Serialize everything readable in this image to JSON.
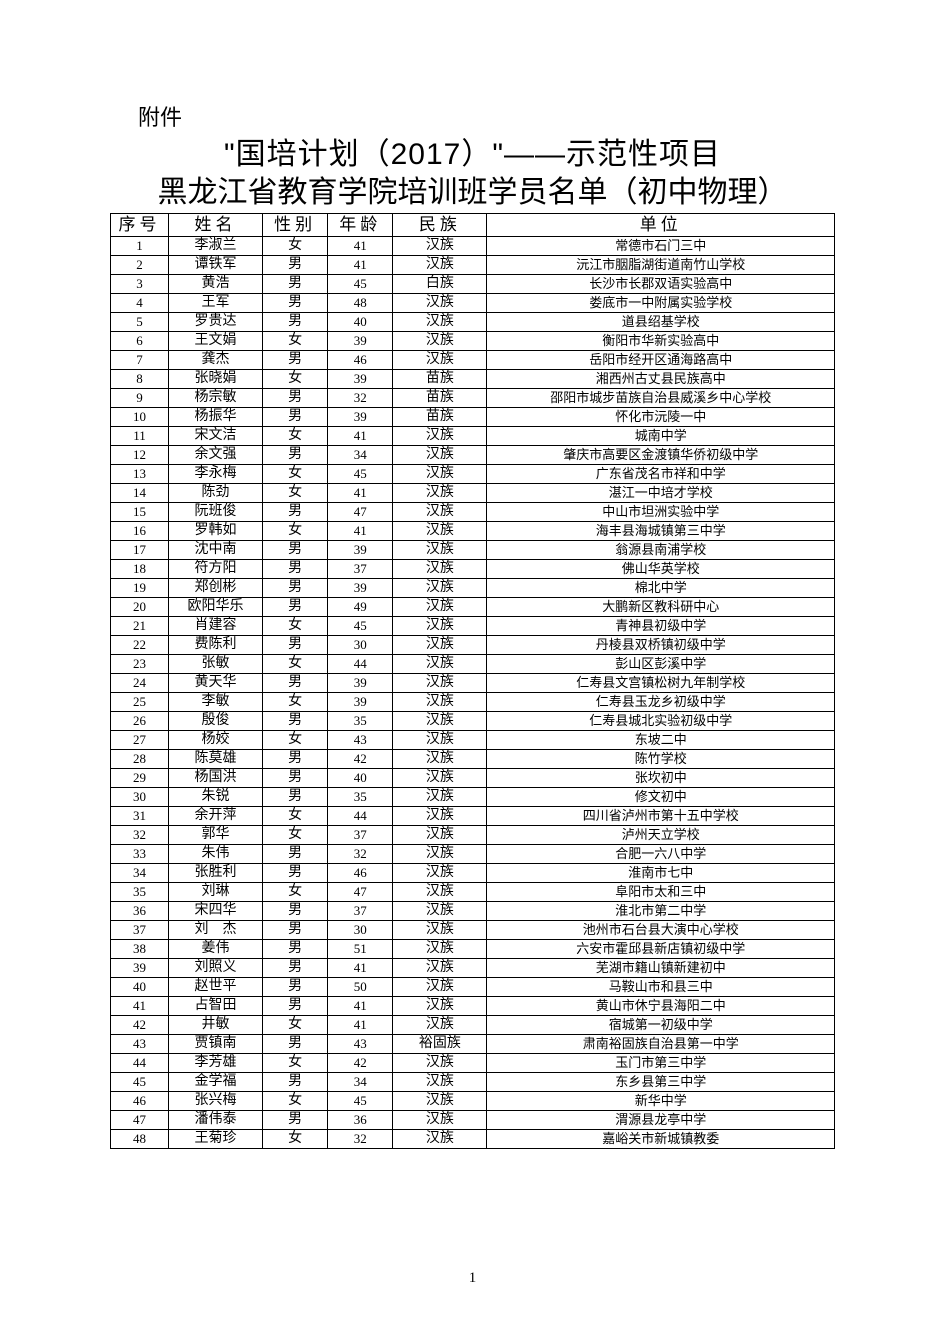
{
  "page": {
    "attachment_label": "附件",
    "title_line_1": "\"国培计划（2017）\"——示范性项目",
    "title_line_2": "黑龙江省教育学院培训班学员名单（初中物理）",
    "page_number": "1",
    "background_color": "#ffffff",
    "text_color": "#000000",
    "border_color": "#000000"
  },
  "table": {
    "columns": [
      "序号",
      "姓名",
      "性别",
      "年龄",
      "民族",
      "单位"
    ],
    "header_fontsize": 17,
    "body_fontsize": 14,
    "rows": [
      [
        "1",
        "李淑兰",
        "女",
        "41",
        "汉族",
        "常德市石门三中"
      ],
      [
        "2",
        "谭铁军",
        "男",
        "41",
        "汉族",
        "沅江市胭脂湖街道南竹山学校"
      ],
      [
        "3",
        "黄浩",
        "男",
        "45",
        "白族",
        "长沙市长郡双语实验高中"
      ],
      [
        "4",
        "王军",
        "男",
        "48",
        "汉族",
        "娄底市一中附属实验学校"
      ],
      [
        "5",
        "罗贵达",
        "男",
        "40",
        "汉族",
        "道县绍基学校"
      ],
      [
        "6",
        "王文娟",
        "女",
        "39",
        "汉族",
        "衡阳市华新实验高中"
      ],
      [
        "7",
        "龚杰",
        "男",
        "46",
        "汉族",
        "岳阳市经开区通海路高中"
      ],
      [
        "8",
        "张晓娟",
        "女",
        "39",
        "苗族",
        "湘西州古丈县民族高中"
      ],
      [
        "9",
        "杨宗敏",
        "男",
        "32",
        "苗族",
        "邵阳市城步苗族自治县威溪乡中心学校"
      ],
      [
        "10",
        "杨振华",
        "男",
        "39",
        "苗族",
        "怀化市沅陵一中"
      ],
      [
        "11",
        "宋文洁",
        "女",
        "41",
        "汉族",
        "城南中学"
      ],
      [
        "12",
        "余文强",
        "男",
        "34",
        "汉族",
        "肇庆市高要区金渡镇华侨初级中学"
      ],
      [
        "13",
        "李永梅",
        "女",
        "45",
        "汉族",
        "广东省茂名市祥和中学"
      ],
      [
        "14",
        "陈劲",
        "女",
        "41",
        "汉族",
        "湛江一中培才学校"
      ],
      [
        "15",
        "阮班俊",
        "男",
        "47",
        "汉族",
        "中山市坦洲实验中学"
      ],
      [
        "16",
        "罗韩如",
        "女",
        "41",
        "汉族",
        "海丰县海城镇第三中学"
      ],
      [
        "17",
        "沈中南",
        "男",
        "39",
        "汉族",
        "翁源县南浦学校"
      ],
      [
        "18",
        "符方阳",
        "男",
        "37",
        "汉族",
        "佛山华英学校"
      ],
      [
        "19",
        "郑创彬",
        "男",
        "39",
        "汉族",
        "棉北中学"
      ],
      [
        "20",
        "欧阳华乐",
        "男",
        "49",
        "汉族",
        "大鹏新区教科研中心"
      ],
      [
        "21",
        "肖建容",
        "女",
        "45",
        "汉族",
        "青神县初级中学"
      ],
      [
        "22",
        "费陈利",
        "男",
        "30",
        "汉族",
        "丹棱县双桥镇初级中学"
      ],
      [
        "23",
        "张敏",
        "女",
        "44",
        "汉族",
        "彭山区彭溪中学"
      ],
      [
        "24",
        "黄天华",
        "男",
        "39",
        "汉族",
        "仁寿县文宫镇松树九年制学校"
      ],
      [
        "25",
        "李敏",
        "女",
        "39",
        "汉族",
        "仁寿县玉龙乡初级中学"
      ],
      [
        "26",
        "殷俊",
        "男",
        "35",
        "汉族",
        "仁寿县城北实验初级中学"
      ],
      [
        "27",
        "杨姣",
        "女",
        "43",
        "汉族",
        "东坡二中"
      ],
      [
        "28",
        "陈莫雄",
        "男",
        "42",
        "汉族",
        "陈竹学校"
      ],
      [
        "29",
        "杨国洪",
        "男",
        "40",
        "汉族",
        "张坎初中"
      ],
      [
        "30",
        "朱锐",
        "男",
        "35",
        "汉族",
        "修文初中"
      ],
      [
        "31",
        "余开萍",
        "女",
        "44",
        "汉族",
        "四川省泸州市第十五中学校"
      ],
      [
        "32",
        "郭华",
        "女",
        "37",
        "汉族",
        "泸州天立学校"
      ],
      [
        "33",
        "朱伟",
        "男",
        "32",
        "汉族",
        "合肥一六八中学"
      ],
      [
        "34",
        "张胜利",
        "男",
        "46",
        "汉族",
        "淮南市七中"
      ],
      [
        "35",
        "刘琳",
        "女",
        "47",
        "汉族",
        "阜阳市太和三中"
      ],
      [
        "36",
        "宋四华",
        "男",
        "37",
        "汉族",
        "淮北市第二中学"
      ],
      [
        "37",
        "刘　杰",
        "男",
        "30",
        "汉族",
        "池州市石台县大演中心学校"
      ],
      [
        "38",
        "姜伟",
        "男",
        "51",
        "汉族",
        "六安市霍邱县新店镇初级中学"
      ],
      [
        "39",
        "刘照义",
        "男",
        "41",
        "汉族",
        "芜湖市籍山镇新建初中"
      ],
      [
        "40",
        "赵世平",
        "男",
        "50",
        "汉族",
        "马鞍山市和县三中"
      ],
      [
        "41",
        "占智田",
        "男",
        "41",
        "汉族",
        "黄山市休宁县海阳二中"
      ],
      [
        "42",
        "井敏",
        "女",
        "41",
        "汉族",
        "宿城第一初级中学"
      ],
      [
        "43",
        "贾镇南",
        "男",
        "43",
        "裕固族",
        "肃南裕固族自治县第一中学"
      ],
      [
        "44",
        "李芳雄",
        "女",
        "42",
        "汉族",
        "玉门市第三中学"
      ],
      [
        "45",
        "金学福",
        "男",
        "34",
        "汉族",
        "东乡县第三中学"
      ],
      [
        "46",
        "张兴梅",
        "女",
        "45",
        "汉族",
        "新华中学"
      ],
      [
        "47",
        "潘伟泰",
        "男",
        "36",
        "汉族",
        "渭源县龙亭中学"
      ],
      [
        "48",
        "王菊珍",
        "女",
        "32",
        "汉族",
        "嘉峪关市新城镇教委"
      ]
    ]
  }
}
